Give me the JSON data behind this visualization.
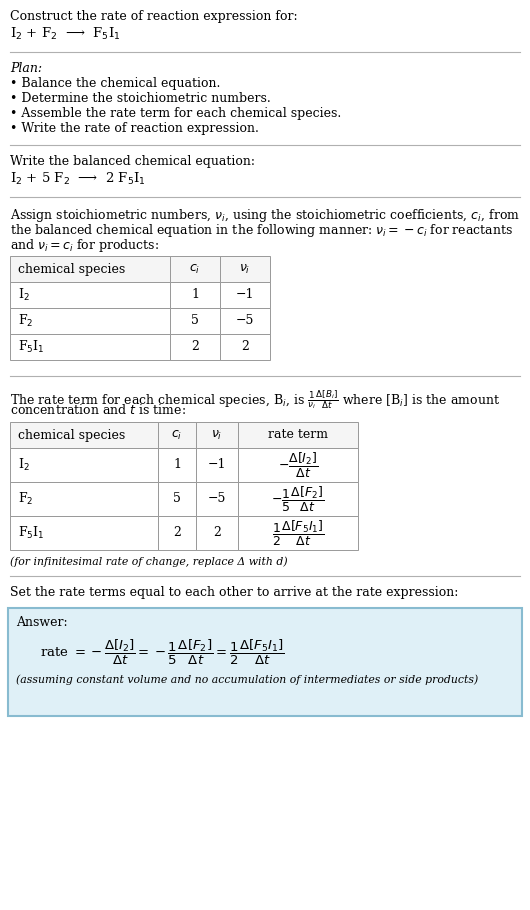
{
  "bg_color": "#ffffff",
  "text_color": "#000000",
  "section1_title": "Construct the rate of reaction expression for:",
  "section1_reaction": "I$_2$ + F$_2$  ⟶  F$_5$I$_1$",
  "section2_title": "Plan:",
  "section2_bullets": [
    "• Balance the chemical equation.",
    "• Determine the stoichiometric numbers.",
    "• Assemble the rate term for each chemical species.",
    "• Write the rate of reaction expression."
  ],
  "section3_title": "Write the balanced chemical equation:",
  "section3_equation": "I$_2$ + 5 F$_2$  ⟶  2 F$_5$I$_1$",
  "section4_intro_lines": [
    "Assign stoichiometric numbers, $\\nu_i$, using the stoichiometric coefficients, $c_i$, from",
    "the balanced chemical equation in the following manner: $\\nu_i = -c_i$ for reactants",
    "and $\\nu_i = c_i$ for products:"
  ],
  "table1_headers": [
    "chemical species",
    "$c_i$",
    "$\\nu_i$"
  ],
  "table1_rows": [
    [
      "I$_2$",
      "1",
      "−1"
    ],
    [
      "F$_2$",
      "5",
      "−5"
    ],
    [
      "F$_5$I$_1$",
      "2",
      "2"
    ]
  ],
  "section5_intro_lines": [
    "The rate term for each chemical species, B$_i$, is $\\frac{1}{\\nu_i}\\frac{\\Delta[B_i]}{\\Delta t}$ where [B$_i$] is the amount",
    "concentration and $t$ is time:"
  ],
  "table2_headers": [
    "chemical species",
    "$c_i$",
    "$\\nu_i$",
    "rate term"
  ],
  "table2_rows": [
    [
      "I$_2$",
      "1",
      "−1",
      "$-\\dfrac{\\Delta[I_2]}{\\Delta t}$"
    ],
    [
      "F$_2$",
      "5",
      "−5",
      "$-\\dfrac{1}{5}\\dfrac{\\Delta[F_2]}{\\Delta t}$"
    ],
    [
      "F$_5$I$_1$",
      "2",
      "2",
      "$\\dfrac{1}{2}\\dfrac{\\Delta[F_5I_1]}{\\Delta t}$"
    ]
  ],
  "section5_footer": "(for infinitesimal rate of change, replace Δ with 𝑑)",
  "section6_intro": "Set the rate terms equal to each other to arrive at the rate expression:",
  "answer_label": "Answer:",
  "answer_equation": "rate $= -\\dfrac{\\Delta[I_2]}{\\Delta t} = -\\dfrac{1}{5}\\dfrac{\\Delta[F_2]}{\\Delta t} = \\dfrac{1}{2}\\dfrac{\\Delta[F_5I_1]}{\\Delta t}$",
  "answer_footer": "(assuming constant volume and no accumulation of intermediates or side products)",
  "answer_box_color": "#dff0f7",
  "answer_box_border": "#88bbd0"
}
